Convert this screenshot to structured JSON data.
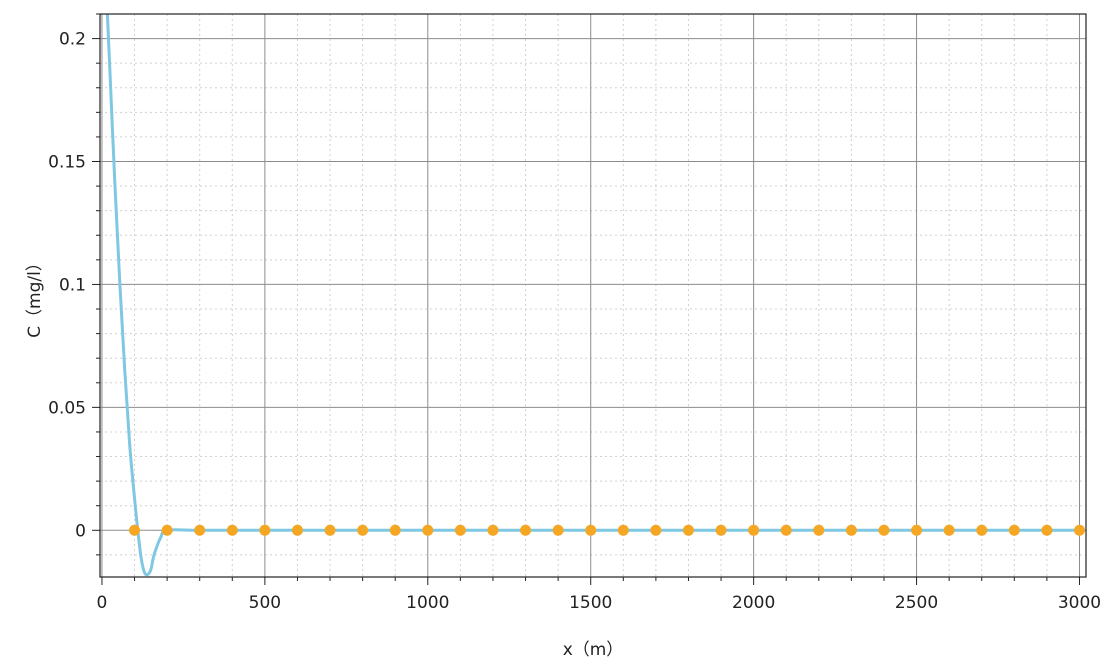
{
  "chart_data": {
    "type": "line",
    "title": "",
    "xlabel": "x（m）",
    "ylabel": "C（mg/l）",
    "xlim": [
      -6,
      3020
    ],
    "ylim": [
      -0.019,
      0.21
    ],
    "xticks": [
      0,
      500,
      1000,
      1500,
      2000,
      2500,
      3000
    ],
    "yticks": [
      0,
      0.05,
      0.1,
      0.15,
      0.2
    ],
    "xtick_labels": [
      "0",
      "500",
      "1000",
      "1500",
      "2000",
      "2500",
      "3000"
    ],
    "ytick_labels": [
      "0",
      "0.05",
      "0.1",
      "0.15",
      "0.2"
    ],
    "grid": true,
    "series": [
      {
        "color": "#7ec8e3",
        "marker": "none",
        "x": [
          15,
          25,
          40,
          55,
          70,
          85,
          100,
          110,
          120,
          130,
          140,
          150,
          160,
          180,
          200,
          300,
          500,
          1000,
          1500,
          2000,
          2500,
          3000
        ],
        "y": [
          0.215,
          0.185,
          0.14,
          0.1,
          0.065,
          0.035,
          0.013,
          0.0,
          -0.011,
          -0.017,
          -0.018,
          -0.016,
          -0.01,
          -0.003,
          0.0,
          0.0,
          0.0,
          0.0,
          0.0,
          0.0,
          0.0,
          0.0
        ]
      },
      {
        "color": "#f5a623",
        "marker": "circle",
        "x": [
          100,
          200,
          300,
          400,
          500,
          600,
          700,
          800,
          900,
          1000,
          1100,
          1200,
          1300,
          1400,
          1500,
          1600,
          1700,
          1800,
          1900,
          2000,
          2100,
          2200,
          2300,
          2400,
          2500,
          2600,
          2700,
          2800,
          2900,
          3000
        ],
        "y": [
          0,
          0,
          0,
          0,
          0,
          0,
          0,
          0,
          0,
          0,
          0,
          0,
          0,
          0,
          0,
          0,
          0,
          0,
          0,
          0,
          0,
          0,
          0,
          0,
          0,
          0,
          0,
          0,
          0,
          0
        ]
      }
    ]
  }
}
